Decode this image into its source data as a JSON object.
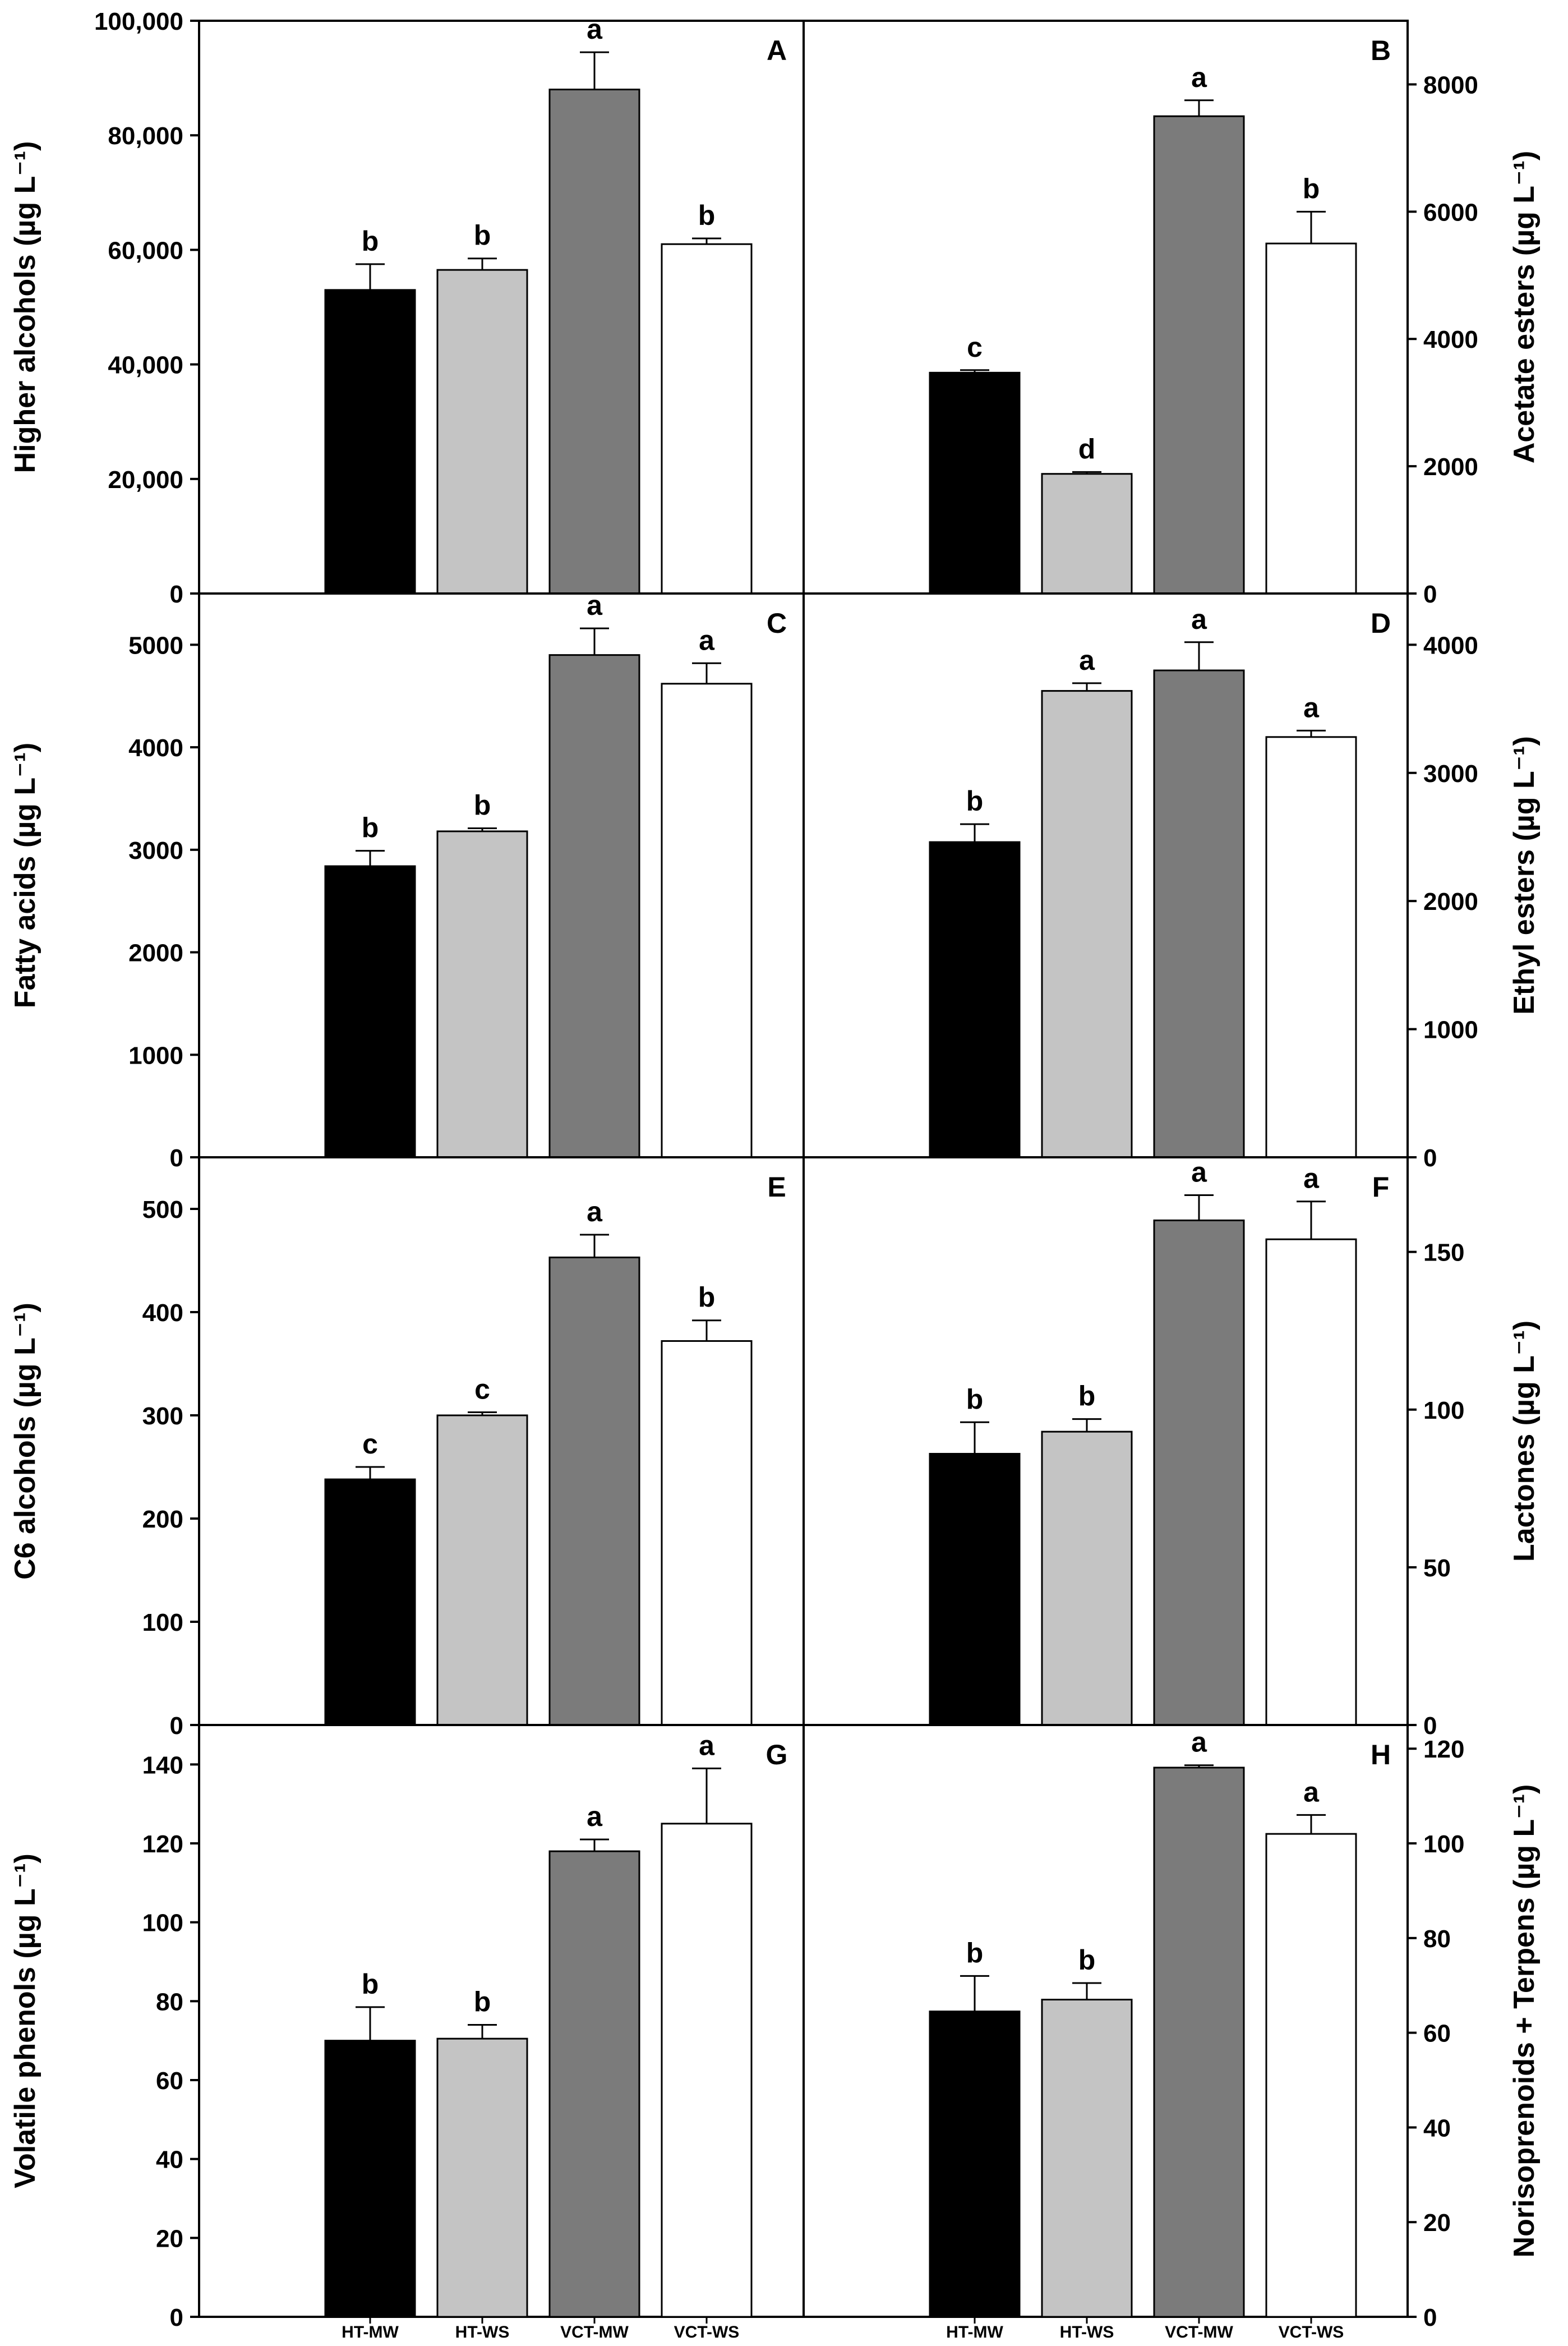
{
  "chart_data": [
    {
      "type": "bar",
      "panel": "A",
      "categories": [
        "HT-MW",
        "HT-WS",
        "VCT-MW",
        "VCT-WS"
      ],
      "values": [
        53000,
        56500,
        88000,
        61000
      ],
      "errors": [
        4500,
        2000,
        6500,
        1000
      ],
      "significance": [
        "b",
        "b",
        "a",
        "b"
      ],
      "ylabel": "Higher alcohols (µg L⁻¹)",
      "ylim": [
        0,
        100000
      ],
      "yticks": [
        0,
        20000,
        40000,
        60000,
        80000,
        100000
      ],
      "ytick_labels": [
        "0",
        "20,000",
        "40,000",
        "60,000",
        "80,000",
        "100,000"
      ],
      "axis_side": "left"
    },
    {
      "type": "bar",
      "panel": "B",
      "categories": [
        "HT-MW",
        "HT-WS",
        "VCT-MW",
        "VCT-WS"
      ],
      "values": [
        3470,
        1880,
        7500,
        5500
      ],
      "errors": [
        40,
        30,
        250,
        500
      ],
      "significance": [
        "c",
        "d",
        "a",
        "b"
      ],
      "ylabel": "Acetate esters (µg L⁻¹)",
      "ylim": [
        0,
        9000
      ],
      "yticks": [
        0,
        2000,
        4000,
        6000,
        8000
      ],
      "ytick_labels": [
        "0",
        "2000",
        "4000",
        "6000",
        "8000"
      ],
      "axis_side": "right"
    },
    {
      "type": "bar",
      "panel": "C",
      "categories": [
        "HT-MW",
        "HT-WS",
        "VCT-MW",
        "VCT-WS"
      ],
      "values": [
        2840,
        3180,
        4900,
        4620
      ],
      "errors": [
        150,
        30,
        260,
        200
      ],
      "significance": [
        "b",
        "b",
        "a",
        "a"
      ],
      "ylabel": "Fatty acids (µg L⁻¹)",
      "ylim": [
        0,
        5500
      ],
      "yticks": [
        0,
        1000,
        2000,
        3000,
        4000,
        5000
      ],
      "ytick_labels": [
        "0",
        "1000",
        "2000",
        "3000",
        "4000",
        "5000"
      ],
      "axis_side": "left"
    },
    {
      "type": "bar",
      "panel": "D",
      "categories": [
        "HT-MW",
        "HT-WS",
        "VCT-MW",
        "VCT-WS"
      ],
      "values": [
        2460,
        3640,
        3800,
        3280
      ],
      "errors": [
        140,
        60,
        220,
        50
      ],
      "significance": [
        "b",
        "a",
        "a",
        "a"
      ],
      "ylabel": "Ethyl esters (µg L⁻¹)",
      "ylim": [
        0,
        4400
      ],
      "yticks": [
        0,
        1000,
        2000,
        3000,
        4000
      ],
      "ytick_labels": [
        "0",
        "1000",
        "2000",
        "3000",
        "4000"
      ],
      "axis_side": "right"
    },
    {
      "type": "bar",
      "panel": "E",
      "categories": [
        "HT-MW",
        "HT-WS",
        "VCT-MW",
        "VCT-WS"
      ],
      "values": [
        238,
        300,
        453,
        372
      ],
      "errors": [
        12,
        3,
        22,
        20
      ],
      "significance": [
        "c",
        "c",
        "a",
        "b"
      ],
      "ylabel": "C6 alcohols (µg L⁻¹)",
      "ylim": [
        0,
        550
      ],
      "yticks": [
        0,
        100,
        200,
        300,
        400,
        500
      ],
      "ytick_labels": [
        "0",
        "100",
        "200",
        "300",
        "400",
        "500"
      ],
      "axis_side": "left"
    },
    {
      "type": "bar",
      "panel": "F",
      "categories": [
        "HT-MW",
        "HT-WS",
        "VCT-MW",
        "VCT-WS"
      ],
      "values": [
        86,
        93,
        160,
        154
      ],
      "errors": [
        10,
        4,
        8,
        12
      ],
      "significance": [
        "b",
        "b",
        "a",
        "a"
      ],
      "ylabel": "Lactones (µg L⁻¹)",
      "ylim": [
        0,
        180
      ],
      "yticks": [
        0,
        50,
        100,
        150
      ],
      "ytick_labels": [
        "0",
        "50",
        "100",
        "150"
      ],
      "axis_side": "right"
    },
    {
      "type": "bar",
      "panel": "G",
      "categories": [
        "HT-MW",
        "HT-WS",
        "VCT-MW",
        "VCT-WS"
      ],
      "values": [
        70,
        70.5,
        118,
        125
      ],
      "errors": [
        8.5,
        3.5,
        3,
        14
      ],
      "significance": [
        "b",
        "b",
        "a",
        "a"
      ],
      "ylabel": "Volatile phenols (µg L⁻¹)",
      "ylim": [
        0,
        150
      ],
      "yticks": [
        0,
        20,
        40,
        60,
        80,
        100,
        120,
        140
      ],
      "ytick_labels": [
        "0",
        "20",
        "40",
        "60",
        "80",
        "100",
        "120",
        "140"
      ],
      "axis_side": "left"
    },
    {
      "type": "bar",
      "panel": "H",
      "categories": [
        "HT-MW",
        "HT-WS",
        "VCT-MW",
        "VCT-WS"
      ],
      "values": [
        64.5,
        67,
        116,
        102
      ],
      "errors": [
        7.5,
        3.5,
        0.5,
        4
      ],
      "significance": [
        "b",
        "b",
        "a",
        "a"
      ],
      "ylabel": "Norisoprenoids + Terpens (µg L⁻¹)",
      "ylim": [
        0,
        125
      ],
      "yticks": [
        0,
        20,
        40,
        60,
        80,
        100,
        120
      ],
      "ytick_labels": [
        "0",
        "20",
        "40",
        "60",
        "80",
        "100",
        "120"
      ],
      "axis_side": "right"
    }
  ],
  "x_tick_labels": [
    "HT-MW",
    "HT-WS",
    "VCT-MW",
    "VCT-WS"
  ],
  "colors": {
    "HT-MW": "#000000",
    "HT-WS": "#c4c4c4",
    "VCT-MW": "#7b7b7b",
    "VCT-WS": "#ffffff"
  }
}
